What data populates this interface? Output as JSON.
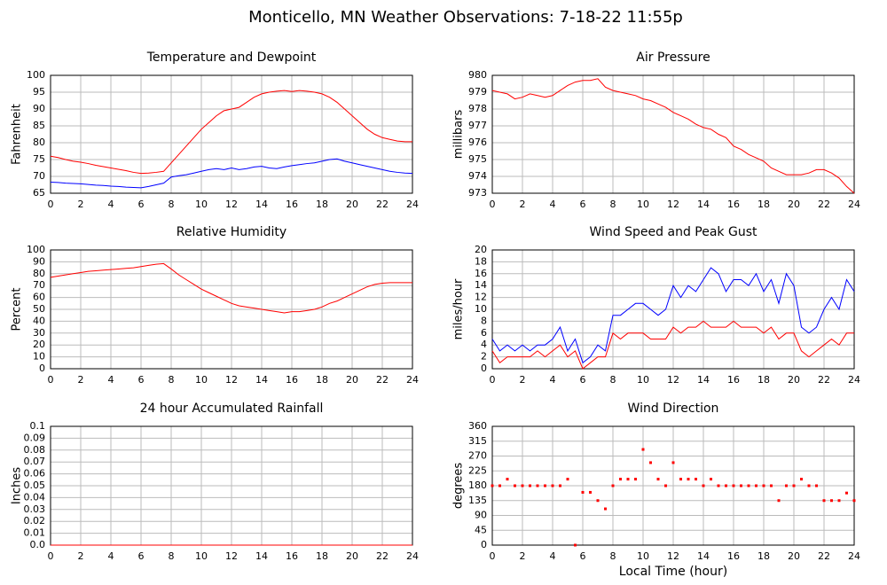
{
  "title": "Monticello, MN Weather Observations: 7-18-22 11:55p",
  "chart_data": [
    {
      "type": "line",
      "title": "Temperature and Dewpoint",
      "ylabel": "Fahrenheit",
      "x": [
        0,
        0.5,
        1,
        1.5,
        2,
        2.5,
        3,
        3.5,
        4,
        4.5,
        5,
        5.5,
        6,
        6.5,
        7,
        7.5,
        8,
        8.5,
        9,
        9.5,
        10,
        10.5,
        11,
        11.5,
        12,
        12.5,
        13,
        13.5,
        14,
        14.5,
        15,
        15.5,
        16,
        16.5,
        17,
        17.5,
        18,
        18.5,
        19,
        19.5,
        20,
        20.5,
        21,
        21.5,
        22,
        22.5,
        23,
        23.5,
        24
      ],
      "series": [
        {
          "color": "#ff0000",
          "values": [
            76,
            75.6,
            75,
            74.5,
            74.2,
            73.8,
            73.3,
            72.9,
            72.5,
            72.1,
            71.7,
            71.2,
            70.9,
            71,
            71.2,
            71.5,
            74,
            76.5,
            79,
            81.5,
            84,
            86,
            88,
            89.5,
            90,
            90.5,
            92,
            93.5,
            94.5,
            95,
            95.3,
            95.5,
            95.2,
            95.5,
            95.3,
            95,
            94.5,
            93.5,
            92,
            90,
            88,
            86,
            84,
            82.5,
            81.5,
            81,
            80.5,
            80.3,
            80.3
          ]
        },
        {
          "color": "#0000ff",
          "values": [
            68.3,
            68.2,
            68,
            67.9,
            67.8,
            67.6,
            67.4,
            67.3,
            67.1,
            67,
            66.8,
            66.7,
            66.6,
            67,
            67.5,
            68,
            69.8,
            70.2,
            70.5,
            71,
            71.5,
            72,
            72.3,
            72,
            72.5,
            72,
            72.3,
            72.8,
            73,
            72.5,
            72.3,
            72.8,
            73.2,
            73.5,
            73.8,
            74,
            74.5,
            75,
            75.2,
            74.5,
            74,
            73.5,
            73,
            72.5,
            72,
            71.5,
            71.2,
            71,
            70.9
          ]
        }
      ],
      "xlim": [
        0,
        24
      ],
      "xticks": [
        0,
        2,
        4,
        6,
        8,
        10,
        12,
        14,
        16,
        18,
        20,
        22,
        24
      ],
      "ylim": [
        65,
        100
      ],
      "yticks": [
        65,
        70,
        75,
        80,
        85,
        90,
        95,
        100
      ],
      "grid": true
    },
    {
      "type": "line",
      "title": "Air Pressure",
      "ylabel": "millibars",
      "x": [
        0,
        0.5,
        1,
        1.5,
        2,
        2.5,
        3,
        3.5,
        4,
        4.5,
        5,
        5.5,
        6,
        6.5,
        7,
        7.5,
        8,
        8.5,
        9,
        9.5,
        10,
        10.5,
        11,
        11.5,
        12,
        12.5,
        13,
        13.5,
        14,
        14.5,
        15,
        15.5,
        16,
        16.5,
        17,
        17.5,
        18,
        18.5,
        19,
        19.5,
        20,
        20.5,
        21,
        21.5,
        22,
        22.5,
        23,
        23.5,
        24
      ],
      "series": [
        {
          "color": "#ff0000",
          "values": [
            979.1,
            979,
            978.9,
            978.6,
            978.7,
            978.9,
            978.8,
            978.7,
            978.8,
            979.1,
            979.4,
            979.6,
            979.7,
            979.7,
            979.8,
            979.3,
            979.1,
            979,
            978.9,
            978.8,
            978.6,
            978.5,
            978.3,
            978.1,
            977.8,
            977.6,
            977.4,
            977.1,
            976.9,
            976.8,
            976.5,
            976.3,
            975.8,
            975.6,
            975.3,
            975.1,
            974.9,
            974.5,
            974.3,
            974.1,
            974.1,
            974.1,
            974.2,
            974.4,
            974.4,
            974.2,
            973.9,
            973.4,
            973
          ]
        }
      ],
      "xlim": [
        0,
        24
      ],
      "xticks": [
        0,
        2,
        4,
        6,
        8,
        10,
        12,
        14,
        16,
        18,
        20,
        22,
        24
      ],
      "ylim": [
        973,
        980
      ],
      "yticks": [
        973,
        974,
        975,
        976,
        977,
        978,
        979,
        980
      ],
      "grid": true
    },
    {
      "type": "line",
      "title": "Relative Humidity",
      "ylabel": "Percent",
      "x": [
        0,
        0.5,
        1,
        1.5,
        2,
        2.5,
        3,
        3.5,
        4,
        4.5,
        5,
        5.5,
        6,
        6.5,
        7,
        7.5,
        8,
        8.5,
        9,
        9.5,
        10,
        10.5,
        11,
        11.5,
        12,
        12.5,
        13,
        13.5,
        14,
        14.5,
        15,
        15.5,
        16,
        16.5,
        17,
        17.5,
        18,
        18.5,
        19,
        19.5,
        20,
        20.5,
        21,
        21.5,
        22,
        22.5,
        23,
        23.5,
        24
      ],
      "series": [
        {
          "color": "#ff0000",
          "values": [
            77,
            78,
            79,
            80,
            81,
            82,
            82.5,
            83,
            83.5,
            84,
            84.5,
            85,
            86,
            87,
            88,
            88.5,
            84,
            79,
            75,
            71,
            67,
            64,
            61,
            58,
            55,
            53,
            52,
            51,
            50,
            49,
            48,
            47,
            48,
            48,
            49,
            50,
            52,
            55,
            57,
            60,
            63,
            66,
            69,
            71,
            72,
            72.5,
            72.5,
            72.5,
            72.5
          ]
        }
      ],
      "xlim": [
        0,
        24
      ],
      "xticks": [
        0,
        2,
        4,
        6,
        8,
        10,
        12,
        14,
        16,
        18,
        20,
        22,
        24
      ],
      "ylim": [
        0,
        100
      ],
      "yticks": [
        0,
        10,
        20,
        30,
        40,
        50,
        60,
        70,
        80,
        90,
        100
      ],
      "grid": true
    },
    {
      "type": "line",
      "title": "Wind Speed and Peak Gust",
      "ylabel": "miles/hour",
      "x": [
        0,
        0.5,
        1,
        1.5,
        2,
        2.5,
        3,
        3.5,
        4,
        4.5,
        5,
        5.5,
        6,
        6.5,
        7,
        7.5,
        8,
        8.5,
        9,
        9.5,
        10,
        10.5,
        11,
        11.5,
        12,
        12.5,
        13,
        13.5,
        14,
        14.5,
        15,
        15.5,
        16,
        16.5,
        17,
        17.5,
        18,
        18.5,
        19,
        19.5,
        20,
        20.5,
        21,
        21.5,
        22,
        22.5,
        23,
        23.5,
        24
      ],
      "series": [
        {
          "color": "#0000ff",
          "values": [
            5,
            3,
            4,
            3,
            4,
            3,
            4,
            4,
            5,
            7,
            3,
            5,
            1,
            2,
            4,
            3,
            9,
            9,
            10,
            11,
            11,
            10,
            9,
            10,
            14,
            12,
            14,
            13,
            15,
            17,
            16,
            13,
            15,
            15,
            14,
            16,
            13,
            15,
            11,
            16,
            14,
            7,
            6,
            7,
            10,
            12,
            10,
            15,
            13
          ]
        },
        {
          "color": "#ff0000",
          "values": [
            3,
            1,
            2,
            2,
            2,
            2,
            3,
            2,
            3,
            4,
            2,
            3,
            0,
            1,
            2,
            2,
            6,
            5,
            6,
            6,
            6,
            5,
            5,
            5,
            7,
            6,
            7,
            7,
            8,
            7,
            7,
            7,
            8,
            7,
            7,
            7,
            6,
            7,
            5,
            6,
            6,
            3,
            2,
            3,
            4,
            5,
            4,
            6,
            6
          ]
        }
      ],
      "xlim": [
        0,
        24
      ],
      "xticks": [
        0,
        2,
        4,
        6,
        8,
        10,
        12,
        14,
        16,
        18,
        20,
        22,
        24
      ],
      "ylim": [
        0,
        20
      ],
      "yticks": [
        0,
        2,
        4,
        6,
        8,
        10,
        12,
        14,
        16,
        18,
        20
      ],
      "grid": true
    },
    {
      "type": "line",
      "title": "24 hour Accumulated Rainfall",
      "ylabel": "Inches",
      "x": [
        0,
        2,
        4,
        6,
        8,
        10,
        12,
        14,
        16,
        18,
        20,
        22,
        24
      ],
      "series": [
        {
          "color": "#ff0000",
          "values": [
            0,
            0,
            0,
            0,
            0,
            0,
            0,
            0,
            0,
            0,
            0,
            0,
            0
          ]
        }
      ],
      "xlim": [
        0,
        24
      ],
      "xticks": [
        0,
        2,
        4,
        6,
        8,
        10,
        12,
        14,
        16,
        18,
        20,
        22,
        24
      ],
      "ylim": [
        0,
        0.1
      ],
      "yticks": [
        {
          "value": 0,
          "label": "0.0"
        },
        0.01,
        0.02,
        0.03,
        0.04,
        0.05,
        0.06,
        0.07,
        0.08,
        0.09,
        0.1
      ],
      "grid": true
    },
    {
      "type": "scatter",
      "title": "Wind Direction",
      "ylabel": "degrees",
      "xlabel": "Local Time (hour)",
      "x": [
        0,
        0.5,
        1,
        1.5,
        2,
        2.5,
        3,
        3.5,
        4,
        4.5,
        5,
        5.5,
        6,
        6.5,
        7,
        7.5,
        8,
        8.5,
        9,
        9.5,
        10,
        10.5,
        11,
        11.5,
        12,
        12.5,
        13,
        13.5,
        14,
        14.5,
        15,
        15.5,
        16,
        16.5,
        17,
        17.5,
        18,
        18.5,
        19,
        19.5,
        20,
        20.5,
        21,
        21.5,
        22,
        22.5,
        23,
        23.5,
        24
      ],
      "series": [
        {
          "color": "#ff0000",
          "values": [
            180,
            180,
            200,
            180,
            180,
            180,
            180,
            180,
            180,
            180,
            200,
            0,
            160,
            160,
            135,
            110,
            180,
            200,
            200,
            200,
            290,
            250,
            200,
            180,
            250,
            200,
            200,
            200,
            180,
            200,
            180,
            180,
            180,
            180,
            180,
            180,
            180,
            180,
            135,
            180,
            180,
            200,
            180,
            180,
            135,
            135,
            135,
            158,
            135
          ]
        }
      ],
      "xlim": [
        0,
        24
      ],
      "xticks": [
        0,
        2,
        4,
        6,
        8,
        10,
        12,
        14,
        16,
        18,
        20,
        22,
        24
      ],
      "ylim": [
        0,
        360
      ],
      "yticks": [
        0,
        45,
        90,
        135,
        180,
        225,
        270,
        315,
        360
      ],
      "grid": true
    }
  ]
}
